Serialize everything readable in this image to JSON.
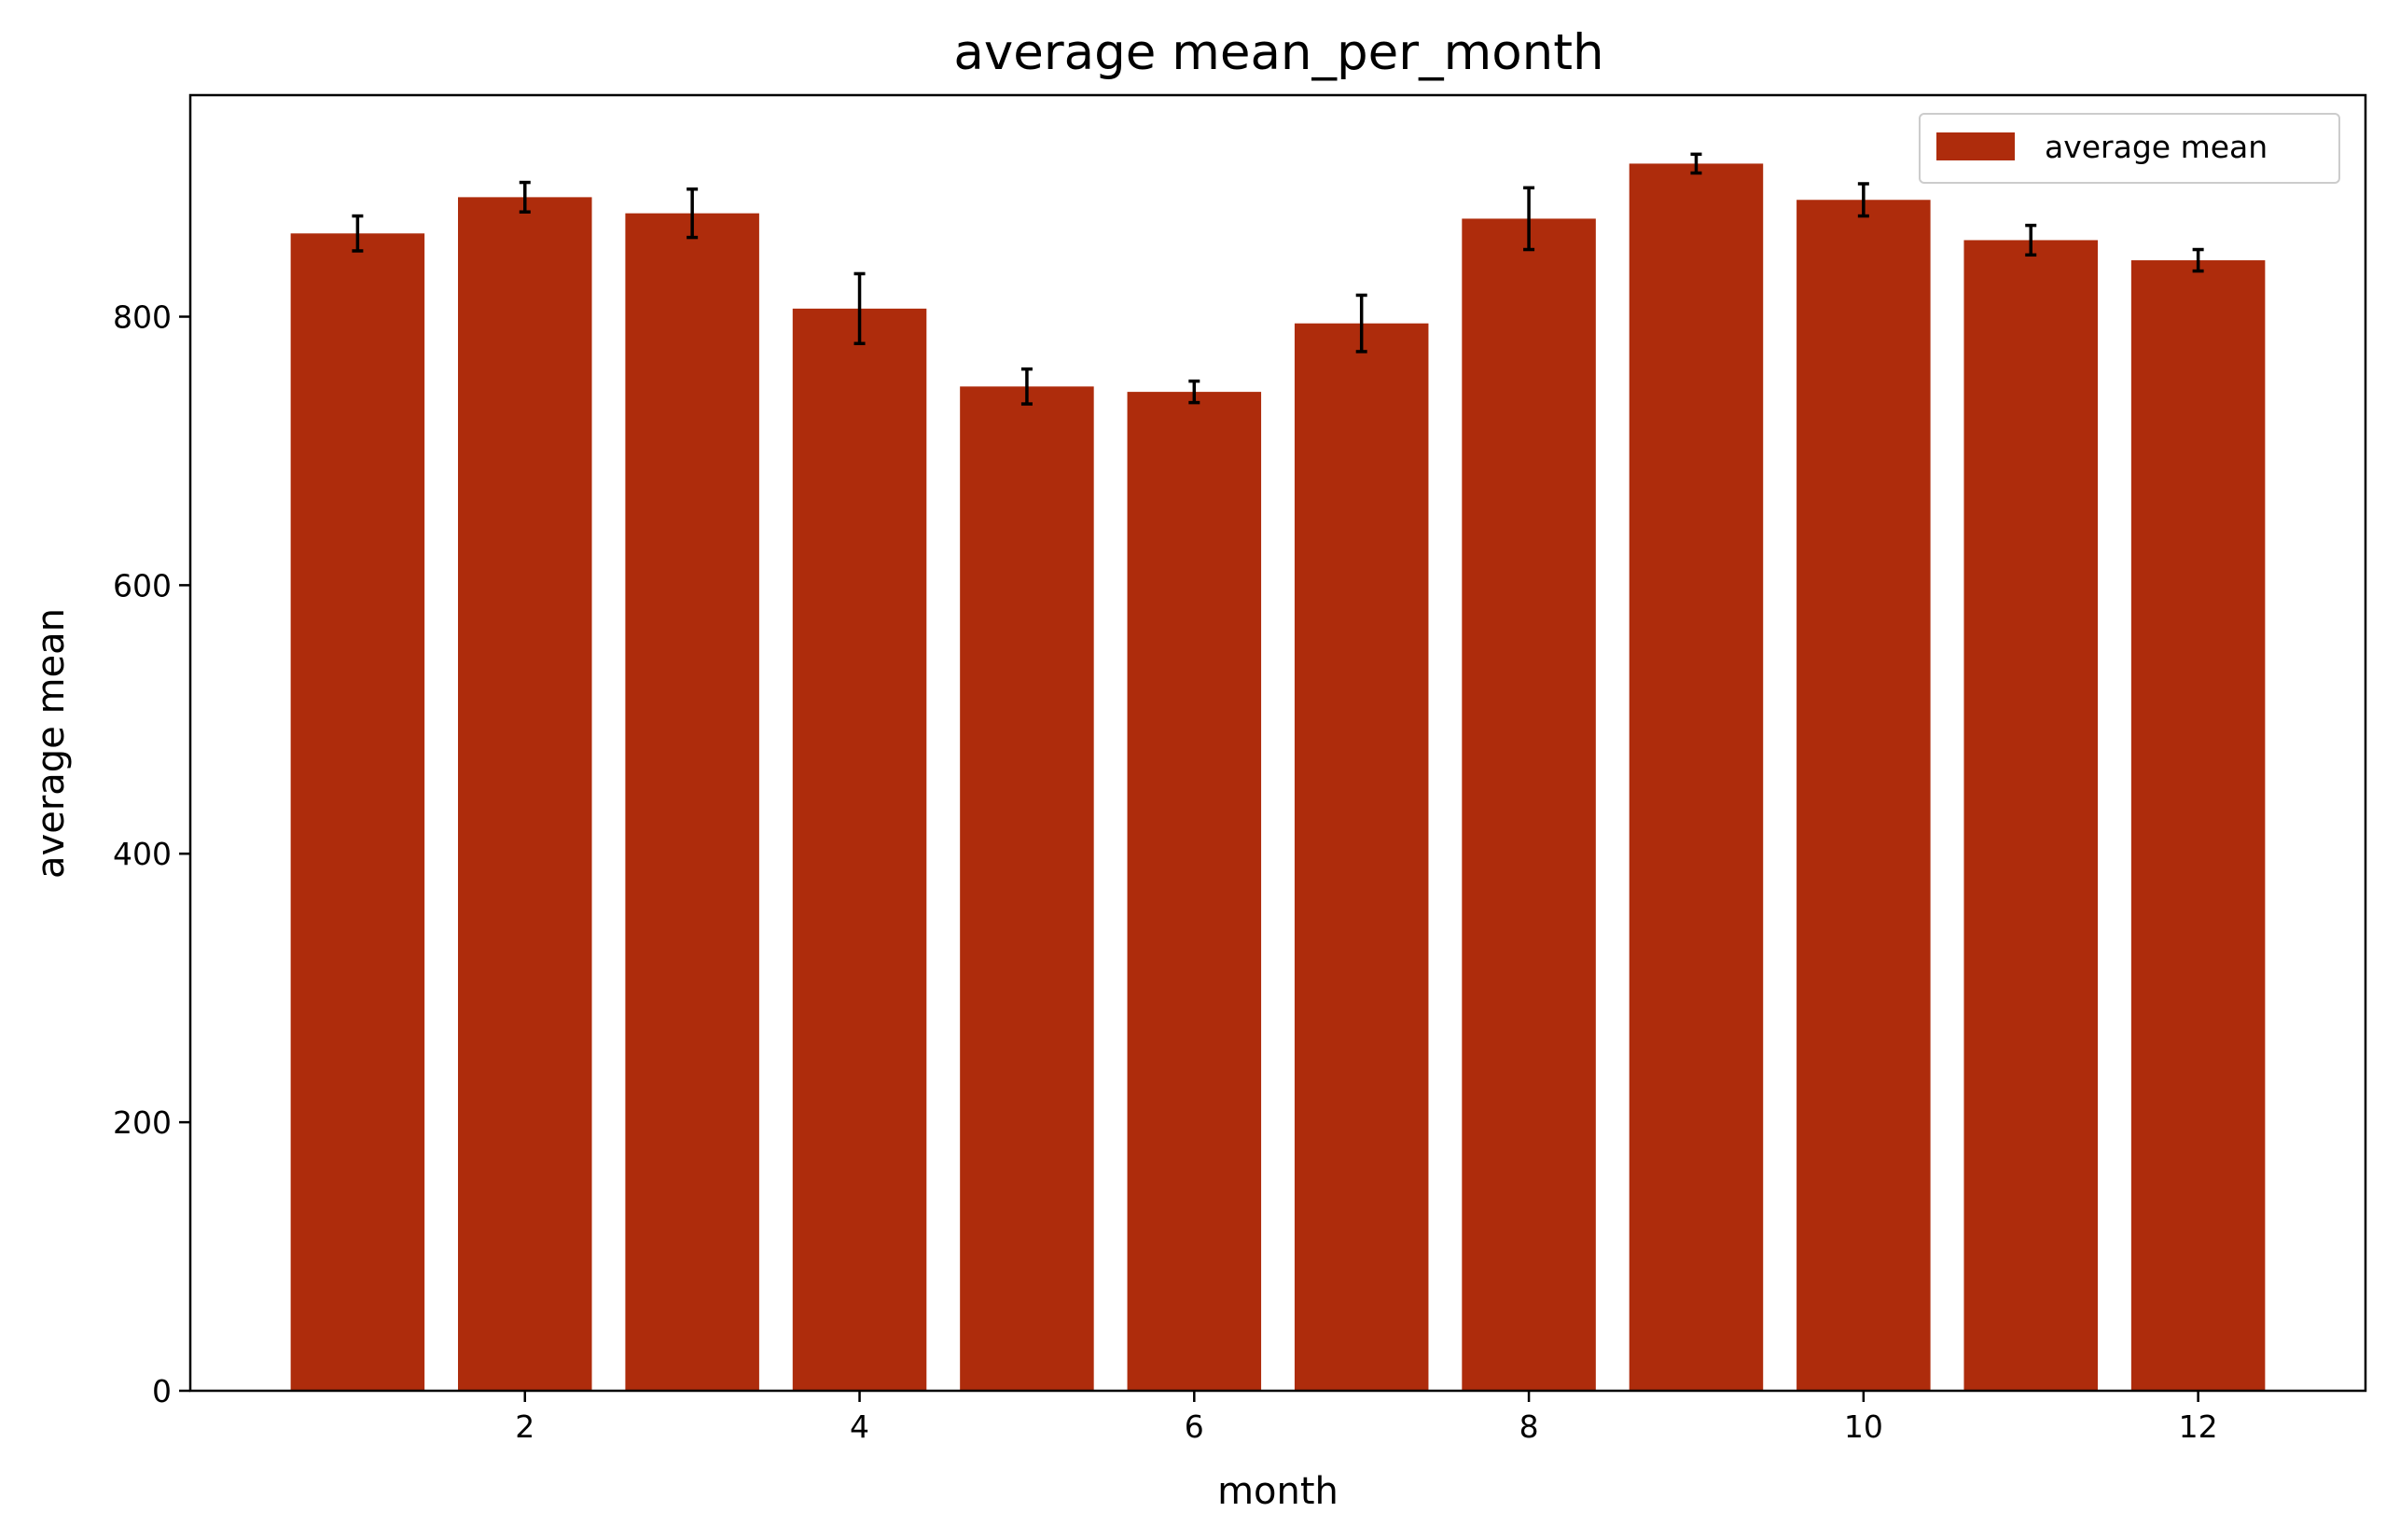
{
  "chart_data": {
    "type": "bar",
    "title": "average mean_per_month",
    "xlabel": "month",
    "ylabel": "average mean",
    "xlim": [
      0,
      13
    ],
    "ylim": [
      0,
      965
    ],
    "x_ticks": [
      2,
      4,
      6,
      8,
      10,
      12
    ],
    "y_ticks": [
      0,
      200,
      400,
      600,
      800
    ],
    "x": [
      1,
      2,
      3,
      4,
      5,
      6,
      7,
      8,
      9,
      10,
      11,
      12
    ],
    "series": [
      {
        "name": "average mean",
        "color": "#ae2c0c",
        "values": [
          862,
          889,
          877,
          806,
          748,
          744,
          795,
          873,
          914,
          887,
          857,
          842
        ],
        "errors": [
          13,
          11,
          18,
          26,
          13,
          8,
          21,
          23,
          7,
          12,
          11,
          8
        ]
      }
    ],
    "legend": {
      "position": "top-right"
    },
    "grid": false,
    "bar_width": 0.8
  }
}
